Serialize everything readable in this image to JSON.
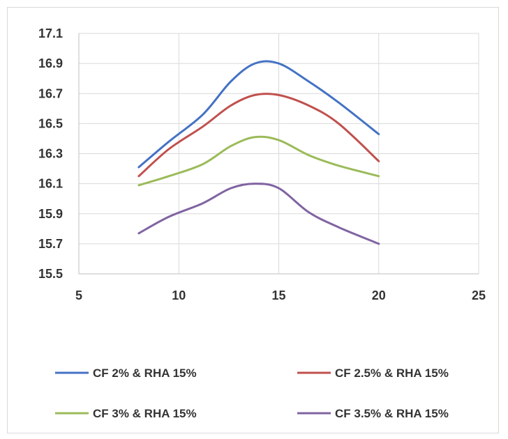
{
  "chart_data": {
    "type": "line",
    "title": "",
    "xlabel": "",
    "ylabel": "",
    "xlim": [
      5,
      25
    ],
    "ylim": [
      15.5,
      17.1
    ],
    "xticks": [
      5,
      10,
      15,
      20,
      25
    ],
    "yticks": [
      "15.5",
      "15.7",
      "15.9",
      "16.1",
      "16.3",
      "16.5",
      "16.7",
      "16.9",
      "17.1"
    ],
    "grid": true,
    "legend_position": "bottom",
    "smooth": true,
    "series": [
      {
        "name": "CF 2% & RHA 15%",
        "color": "#4472c4",
        "x": [
          8,
          9.5,
          11.2,
          12.6,
          13.8,
          15.0,
          16.5,
          18.0,
          20
        ],
        "y": [
          16.21,
          16.38,
          16.56,
          16.78,
          16.9,
          16.9,
          16.78,
          16.64,
          16.43
        ]
      },
      {
        "name": "CF 2.5% & RHA 15%",
        "color": "#c0504d",
        "x": [
          8,
          9.5,
          11.2,
          12.6,
          13.8,
          15.0,
          16.5,
          18.0,
          20
        ],
        "y": [
          16.15,
          16.33,
          16.48,
          16.62,
          16.69,
          16.69,
          16.62,
          16.5,
          16.25
        ]
      },
      {
        "name": "CF 3% & RHA 15%",
        "color": "#9bbb59",
        "x": [
          8,
          9.5,
          11.2,
          12.6,
          13.8,
          15.0,
          16.5,
          18.0,
          20
        ],
        "y": [
          16.09,
          16.15,
          16.23,
          16.35,
          16.41,
          16.39,
          16.29,
          16.22,
          16.15
        ]
      },
      {
        "name": "CF 3.5% & RHA 15%",
        "color": "#8064a2",
        "x": [
          8,
          9.5,
          11.2,
          12.6,
          13.8,
          15.0,
          16.5,
          18.0,
          20
        ],
        "y": [
          15.77,
          15.88,
          15.97,
          16.07,
          16.1,
          16.07,
          15.91,
          15.81,
          15.7
        ]
      }
    ]
  }
}
